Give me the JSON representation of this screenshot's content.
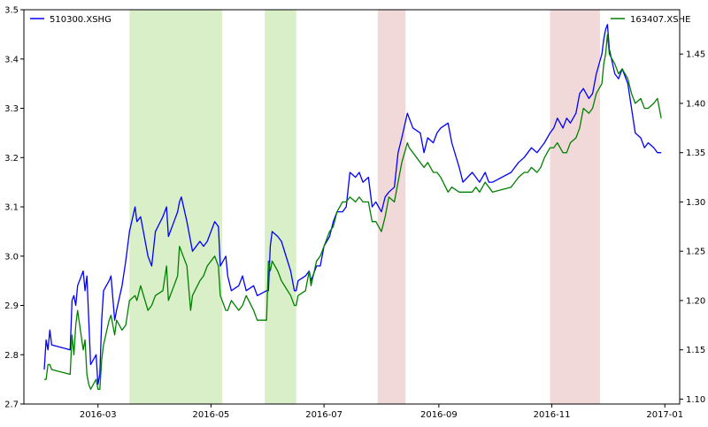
{
  "chart_data": {
    "type": "line",
    "title": "",
    "xlabel": "",
    "ylabel_left": "",
    "ylabel_right": "",
    "x_range": [
      "2016-01-21",
      "2017-01-09"
    ],
    "y_left_range": [
      2.7,
      3.5
    ],
    "y_right_range": [
      1.095,
      1.495
    ],
    "x_ticks": [
      "2016-03",
      "2016-05",
      "2016-07",
      "2016-09",
      "2016-11",
      "2017-01"
    ],
    "x_tick_dates": [
      "2016-03-01",
      "2016-05-01",
      "2016-07-01",
      "2016-09-01",
      "2016-11-01",
      "2017-01-01"
    ],
    "y_left_ticks": [
      "2.7",
      "2.8",
      "2.9",
      "3.0",
      "3.1",
      "3.2",
      "3.3",
      "3.4",
      "3.5"
    ],
    "y_left_tick_values": [
      2.7,
      2.8,
      2.9,
      3.0,
      3.1,
      3.2,
      3.3,
      3.4,
      3.5
    ],
    "y_right_ticks": [
      "1.10",
      "1.15",
      "1.20",
      "1.25",
      "1.30",
      "1.35",
      "1.40",
      "1.45"
    ],
    "y_right_tick_values": [
      1.1,
      1.15,
      1.2,
      1.25,
      1.3,
      1.35,
      1.4,
      1.45
    ],
    "grid": false,
    "legends": [
      {
        "label": "510300.XSHG",
        "color": "#0000ff",
        "placement": "upper-left"
      },
      {
        "label": "163407.XSHE",
        "color": "#008000",
        "placement": "upper-right"
      }
    ],
    "shaded_regions": [
      {
        "start": "2016-03-18",
        "end": "2016-05-07",
        "color": "#d9efc8"
      },
      {
        "start": "2016-05-30",
        "end": "2016-06-16",
        "color": "#d9efc8"
      },
      {
        "start": "2016-07-30",
        "end": "2016-08-14",
        "color": "#f2d9d9"
      },
      {
        "start": "2016-10-31",
        "end": "2016-11-27",
        "color": "#f2d9d9"
      }
    ],
    "series": [
      {
        "name": "510300.XSHG",
        "axis": "left",
        "color": "#0000ff",
        "x": [
          "2016-02-01",
          "2016-02-02",
          "2016-02-03",
          "2016-02-04",
          "2016-02-05",
          "2016-02-15",
          "2016-02-16",
          "2016-02-17",
          "2016-02-18",
          "2016-02-19",
          "2016-02-22",
          "2016-02-23",
          "2016-02-24",
          "2016-02-25",
          "2016-02-26",
          "2016-02-29",
          "2016-03-01",
          "2016-03-02",
          "2016-03-03",
          "2016-03-04",
          "2016-03-07",
          "2016-03-08",
          "2016-03-10",
          "2016-03-11",
          "2016-03-14",
          "2016-03-16",
          "2016-03-18",
          "2016-03-21",
          "2016-03-22",
          "2016-03-24",
          "2016-03-28",
          "2016-03-30",
          "2016-04-01",
          "2016-04-05",
          "2016-04-07",
          "2016-04-08",
          "2016-04-11",
          "2016-04-13",
          "2016-04-14",
          "2016-04-15",
          "2016-04-18",
          "2016-04-20",
          "2016-04-21",
          "2016-04-25",
          "2016-04-27",
          "2016-04-29",
          "2016-05-03",
          "2016-05-05",
          "2016-05-06",
          "2016-05-09",
          "2016-05-10",
          "2016-05-12",
          "2016-05-16",
          "2016-05-18",
          "2016-05-20",
          "2016-05-24",
          "2016-05-26",
          "2016-05-31",
          "2016-06-01",
          "2016-06-02",
          "2016-06-03",
          "2016-06-06",
          "2016-06-08",
          "2016-06-13",
          "2016-06-15",
          "2016-06-16",
          "2016-06-17",
          "2016-06-21",
          "2016-06-23",
          "2016-06-24",
          "2016-06-27",
          "2016-06-29",
          "2016-07-01",
          "2016-07-04",
          "2016-07-06",
          "2016-07-08",
          "2016-07-11",
          "2016-07-13",
          "2016-07-15",
          "2016-07-18",
          "2016-07-20",
          "2016-07-22",
          "2016-07-25",
          "2016-07-27",
          "2016-07-29",
          "2016-08-01",
          "2016-08-03",
          "2016-08-05",
          "2016-08-08",
          "2016-08-10",
          "2016-08-12",
          "2016-08-15",
          "2016-08-16",
          "2016-08-18",
          "2016-08-22",
          "2016-08-24",
          "2016-08-26",
          "2016-08-29",
          "2016-08-31",
          "2016-09-02",
          "2016-09-06",
          "2016-09-08",
          "2016-09-12",
          "2016-09-14",
          "2016-09-19",
          "2016-09-21",
          "2016-09-23",
          "2016-09-26",
          "2016-09-28",
          "2016-09-30",
          "2016-10-10",
          "2016-10-12",
          "2016-10-14",
          "2016-10-17",
          "2016-10-19",
          "2016-10-21",
          "2016-10-24",
          "2016-10-26",
          "2016-10-28",
          "2016-10-31",
          "2016-11-02",
          "2016-11-04",
          "2016-11-07",
          "2016-11-09",
          "2016-11-11",
          "2016-11-14",
          "2016-11-16",
          "2016-11-18",
          "2016-11-21",
          "2016-11-23",
          "2016-11-25",
          "2016-11-28",
          "2016-11-29",
          "2016-11-30",
          "2016-12-01",
          "2016-12-02",
          "2016-12-05",
          "2016-12-07",
          "2016-12-09",
          "2016-12-12",
          "2016-12-14",
          "2016-12-16",
          "2016-12-19",
          "2016-12-21",
          "2016-12-23",
          "2016-12-26",
          "2016-12-28",
          "2016-12-30"
        ],
        "values": [
          2.77,
          2.83,
          2.81,
          2.85,
          2.82,
          2.81,
          2.91,
          2.92,
          2.9,
          2.94,
          2.97,
          2.93,
          2.96,
          2.87,
          2.78,
          2.8,
          2.74,
          2.76,
          2.87,
          2.93,
          2.95,
          2.96,
          2.87,
          2.89,
          2.94,
          2.99,
          3.05,
          3.1,
          3.07,
          3.08,
          3.0,
          2.98,
          3.05,
          3.08,
          3.1,
          3.04,
          3.07,
          3.09,
          3.11,
          3.12,
          3.07,
          3.03,
          3.01,
          3.03,
          3.02,
          3.03,
          3.07,
          3.06,
          2.98,
          3.0,
          2.96,
          2.93,
          2.94,
          2.96,
          2.93,
          2.94,
          2.92,
          2.93,
          2.93,
          3.02,
          3.05,
          3.04,
          3.03,
          2.97,
          2.93,
          2.93,
          2.95,
          2.96,
          2.97,
          2.95,
          2.98,
          2.98,
          3.02,
          3.04,
          3.07,
          3.09,
          3.09,
          3.1,
          3.17,
          3.16,
          3.17,
          3.15,
          3.16,
          3.1,
          3.11,
          3.09,
          3.12,
          3.13,
          3.14,
          3.21,
          3.24,
          3.29,
          3.28,
          3.26,
          3.25,
          3.21,
          3.24,
          3.23,
          3.25,
          3.26,
          3.27,
          3.23,
          3.18,
          3.15,
          3.17,
          3.16,
          3.15,
          3.17,
          3.15,
          3.15,
          3.17,
          3.18,
          3.19,
          3.2,
          3.21,
          3.22,
          3.21,
          3.22,
          3.23,
          3.25,
          3.26,
          3.28,
          3.26,
          3.28,
          3.27,
          3.29,
          3.33,
          3.34,
          3.32,
          3.33,
          3.37,
          3.41,
          3.44,
          3.46,
          3.47,
          3.42,
          3.37,
          3.36,
          3.38,
          3.35,
          3.3,
          3.25,
          3.24,
          3.22,
          3.23,
          3.22,
          3.21,
          3.21
        ]
      },
      {
        "name": "163407.XSHE",
        "axis": "right",
        "color": "#008000",
        "x": [
          "2016-02-01",
          "2016-02-02",
          "2016-02-03",
          "2016-02-04",
          "2016-02-05",
          "2016-02-15",
          "2016-02-16",
          "2016-02-17",
          "2016-02-18",
          "2016-02-19",
          "2016-02-22",
          "2016-02-23",
          "2016-02-24",
          "2016-02-25",
          "2016-02-26",
          "2016-02-29",
          "2016-03-01",
          "2016-03-02",
          "2016-03-03",
          "2016-03-04",
          "2016-03-07",
          "2016-03-08",
          "2016-03-10",
          "2016-03-11",
          "2016-03-14",
          "2016-03-16",
          "2016-03-18",
          "2016-03-21",
          "2016-03-22",
          "2016-03-24",
          "2016-03-28",
          "2016-03-30",
          "2016-04-01",
          "2016-04-05",
          "2016-04-07",
          "2016-04-08",
          "2016-04-11",
          "2016-04-13",
          "2016-04-14",
          "2016-04-15",
          "2016-04-18",
          "2016-04-20",
          "2016-04-21",
          "2016-04-25",
          "2016-04-27",
          "2016-04-29",
          "2016-05-03",
          "2016-05-05",
          "2016-05-06",
          "2016-05-09",
          "2016-05-10",
          "2016-05-12",
          "2016-05-16",
          "2016-05-18",
          "2016-05-20",
          "2016-05-24",
          "2016-05-26",
          "2016-05-31",
          "2016-06-01",
          "2016-06-02",
          "2016-06-03",
          "2016-06-06",
          "2016-06-08",
          "2016-06-13",
          "2016-06-15",
          "2016-06-16",
          "2016-06-17",
          "2016-06-21",
          "2016-06-23",
          "2016-06-24",
          "2016-06-27",
          "2016-06-29",
          "2016-07-01",
          "2016-07-04",
          "2016-07-06",
          "2016-07-08",
          "2016-07-11",
          "2016-07-13",
          "2016-07-15",
          "2016-07-18",
          "2016-07-20",
          "2016-07-22",
          "2016-07-25",
          "2016-07-27",
          "2016-07-29",
          "2016-08-01",
          "2016-08-03",
          "2016-08-05",
          "2016-08-08",
          "2016-08-10",
          "2016-08-12",
          "2016-08-15",
          "2016-08-16",
          "2016-08-18",
          "2016-08-22",
          "2016-08-24",
          "2016-08-26",
          "2016-08-29",
          "2016-08-31",
          "2016-09-02",
          "2016-09-06",
          "2016-09-08",
          "2016-09-12",
          "2016-09-14",
          "2016-09-19",
          "2016-09-21",
          "2016-09-23",
          "2016-09-26",
          "2016-09-28",
          "2016-09-30",
          "2016-10-10",
          "2016-10-12",
          "2016-10-14",
          "2016-10-17",
          "2016-10-19",
          "2016-10-21",
          "2016-10-24",
          "2016-10-26",
          "2016-10-28",
          "2016-10-31",
          "2016-11-02",
          "2016-11-04",
          "2016-11-07",
          "2016-11-09",
          "2016-11-11",
          "2016-11-14",
          "2016-11-16",
          "2016-11-18",
          "2016-11-21",
          "2016-11-23",
          "2016-11-25",
          "2016-11-28",
          "2016-11-29",
          "2016-11-30",
          "2016-12-01",
          "2016-12-02",
          "2016-12-05",
          "2016-12-07",
          "2016-12-09",
          "2016-12-12",
          "2016-12-14",
          "2016-12-16",
          "2016-12-19",
          "2016-12-21",
          "2016-12-23",
          "2016-12-26",
          "2016-12-28",
          "2016-12-30"
        ],
        "values": [
          1.12,
          1.12,
          1.135,
          1.135,
          1.13,
          1.125,
          1.165,
          1.145,
          1.175,
          1.19,
          1.15,
          1.16,
          1.125,
          1.115,
          1.11,
          1.12,
          1.11,
          1.11,
          1.14,
          1.155,
          1.18,
          1.185,
          1.165,
          1.18,
          1.17,
          1.175,
          1.2,
          1.205,
          1.2,
          1.215,
          1.19,
          1.195,
          1.205,
          1.21,
          1.235,
          1.2,
          1.215,
          1.225,
          1.255,
          1.25,
          1.235,
          1.19,
          1.205,
          1.22,
          1.225,
          1.235,
          1.245,
          1.235,
          1.205,
          1.19,
          1.19,
          1.2,
          1.19,
          1.195,
          1.205,
          1.19,
          1.18,
          1.18,
          1.24,
          1.23,
          1.24,
          1.23,
          1.22,
          1.205,
          1.195,
          1.195,
          1.205,
          1.21,
          1.23,
          1.215,
          1.24,
          1.245,
          1.255,
          1.27,
          1.275,
          1.29,
          1.3,
          1.3,
          1.305,
          1.3,
          1.305,
          1.3,
          1.3,
          1.28,
          1.28,
          1.27,
          1.285,
          1.305,
          1.3,
          1.32,
          1.34,
          1.36,
          1.355,
          1.35,
          1.34,
          1.335,
          1.34,
          1.33,
          1.33,
          1.325,
          1.31,
          1.315,
          1.31,
          1.31,
          1.31,
          1.315,
          1.31,
          1.32,
          1.315,
          1.31,
          1.315,
          1.32,
          1.325,
          1.33,
          1.33,
          1.335,
          1.33,
          1.335,
          1.345,
          1.355,
          1.355,
          1.36,
          1.35,
          1.35,
          1.36,
          1.365,
          1.375,
          1.395,
          1.39,
          1.395,
          1.41,
          1.42,
          1.44,
          1.45,
          1.47,
          1.45,
          1.44,
          1.43,
          1.435,
          1.425,
          1.41,
          1.4,
          1.405,
          1.395,
          1.395,
          1.4,
          1.405,
          1.385
        ]
      }
    ]
  }
}
